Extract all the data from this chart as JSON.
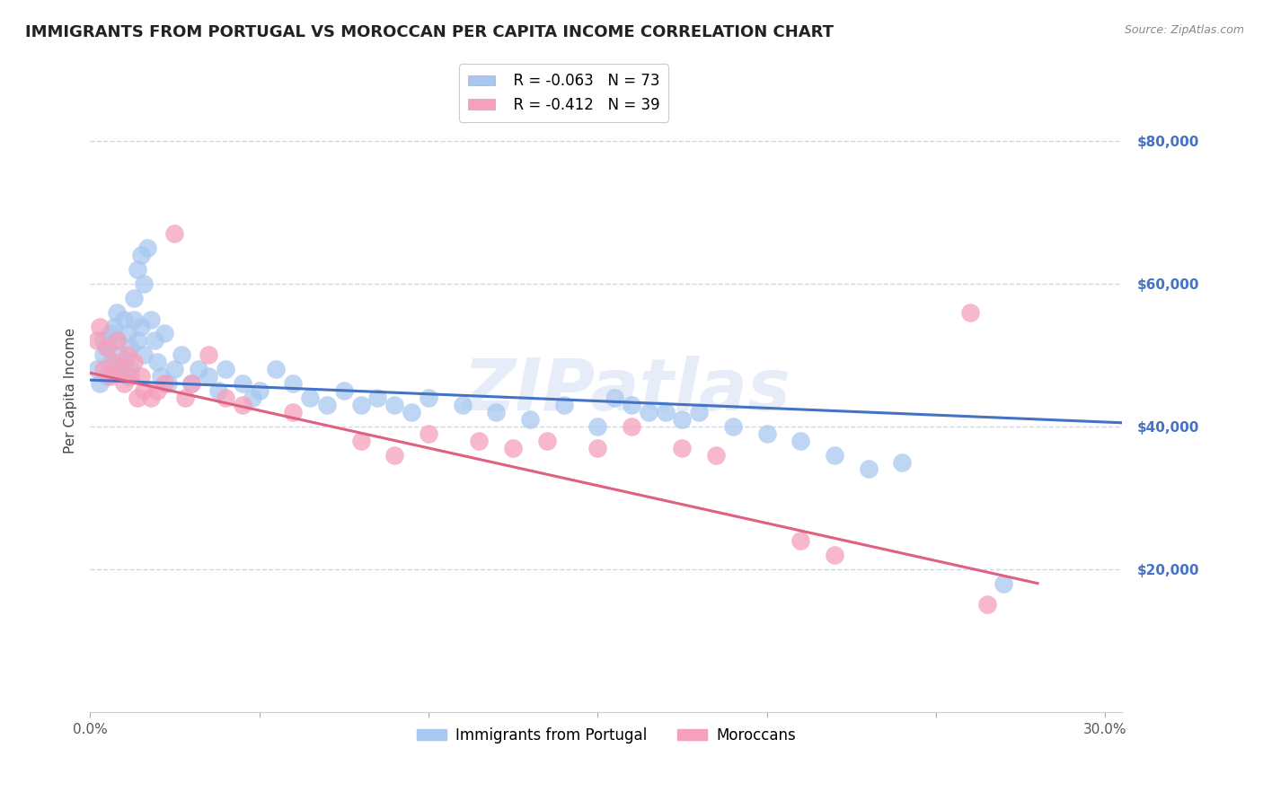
{
  "title": "IMMIGRANTS FROM PORTUGAL VS MOROCCAN PER CAPITA INCOME CORRELATION CHART",
  "source": "Source: ZipAtlas.com",
  "ylabel": "Per Capita Income",
  "ytick_labels": [
    "$20,000",
    "$40,000",
    "$60,000",
    "$80,000"
  ],
  "ytick_values": [
    20000,
    40000,
    60000,
    80000
  ],
  "ylim": [
    0,
    90000
  ],
  "xlim": [
    0.0,
    0.305
  ],
  "watermark": "ZIPatlas",
  "legend_blue_label": "Immigrants from Portugal",
  "legend_pink_label": "Moroccans",
  "legend_blue_r": "R = -0.063",
  "legend_blue_n": "N = 73",
  "legend_pink_r": "R = -0.412",
  "legend_pink_n": "N = 39",
  "blue_color": "#a8c8f0",
  "pink_color": "#f5a0bc",
  "line_blue": "#4472c4",
  "line_pink": "#e06080",
  "blue_scatter_x": [
    0.002,
    0.003,
    0.004,
    0.004,
    0.005,
    0.005,
    0.006,
    0.006,
    0.007,
    0.007,
    0.008,
    0.008,
    0.009,
    0.009,
    0.01,
    0.01,
    0.011,
    0.011,
    0.012,
    0.012,
    0.013,
    0.013,
    0.014,
    0.014,
    0.015,
    0.015,
    0.016,
    0.016,
    0.017,
    0.018,
    0.019,
    0.02,
    0.021,
    0.022,
    0.023,
    0.025,
    0.027,
    0.03,
    0.032,
    0.035,
    0.038,
    0.04,
    0.045,
    0.048,
    0.05,
    0.055,
    0.06,
    0.065,
    0.07,
    0.075,
    0.08,
    0.085,
    0.09,
    0.095,
    0.1,
    0.11,
    0.12,
    0.13,
    0.14,
    0.15,
    0.155,
    0.16,
    0.165,
    0.17,
    0.175,
    0.18,
    0.19,
    0.2,
    0.21,
    0.22,
    0.23,
    0.24,
    0.27
  ],
  "blue_scatter_y": [
    48000,
    46000,
    50000,
    52000,
    47000,
    51000,
    49000,
    53000,
    48000,
    54000,
    52000,
    56000,
    50000,
    48000,
    55000,
    49000,
    53000,
    47000,
    51000,
    48000,
    55000,
    58000,
    52000,
    62000,
    54000,
    64000,
    50000,
    60000,
    65000,
    55000,
    52000,
    49000,
    47000,
    53000,
    46000,
    48000,
    50000,
    46000,
    48000,
    47000,
    45000,
    48000,
    46000,
    44000,
    45000,
    48000,
    46000,
    44000,
    43000,
    45000,
    43000,
    44000,
    43000,
    42000,
    44000,
    43000,
    42000,
    41000,
    43000,
    40000,
    44000,
    43000,
    42000,
    42000,
    41000,
    42000,
    40000,
    39000,
    38000,
    36000,
    34000,
    35000,
    18000
  ],
  "pink_scatter_x": [
    0.002,
    0.003,
    0.004,
    0.005,
    0.006,
    0.007,
    0.008,
    0.009,
    0.01,
    0.011,
    0.012,
    0.013,
    0.014,
    0.015,
    0.016,
    0.018,
    0.02,
    0.022,
    0.025,
    0.028,
    0.03,
    0.035,
    0.04,
    0.045,
    0.06,
    0.08,
    0.09,
    0.1,
    0.115,
    0.125,
    0.135,
    0.15,
    0.16,
    0.175,
    0.185,
    0.21,
    0.22,
    0.265,
    0.26
  ],
  "pink_scatter_y": [
    52000,
    54000,
    48000,
    51000,
    47000,
    49000,
    52000,
    48000,
    46000,
    50000,
    47000,
    49000,
    44000,
    47000,
    45000,
    44000,
    45000,
    46000,
    67000,
    44000,
    46000,
    50000,
    44000,
    43000,
    42000,
    38000,
    36000,
    39000,
    38000,
    37000,
    38000,
    37000,
    40000,
    37000,
    36000,
    24000,
    22000,
    15000,
    56000
  ],
  "blue_line_x": [
    0.0,
    0.305
  ],
  "blue_line_y": [
    46500,
    40500
  ],
  "pink_line_x": [
    0.0,
    0.28
  ],
  "pink_line_y": [
    47500,
    18000
  ],
  "background_color": "#ffffff",
  "grid_color": "#d0d8e8",
  "title_fontsize": 13,
  "axis_label_fontsize": 11,
  "tick_fontsize": 11,
  "ytick_color": "#4472c4"
}
